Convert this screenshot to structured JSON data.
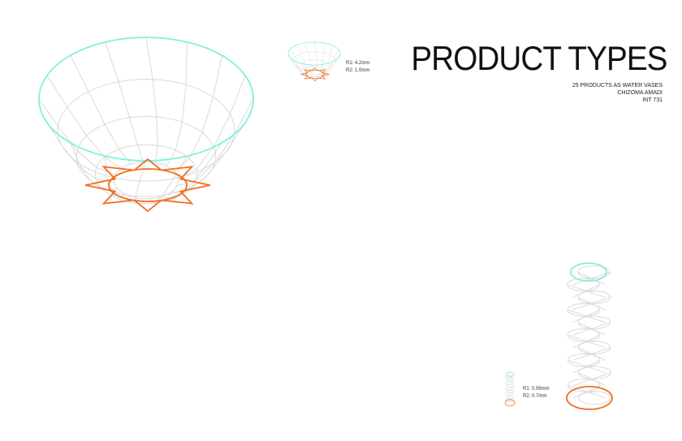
{
  "title": "PRODUCT TYPES",
  "subtitle_lines": [
    "25 PRODUCTS AS WATER VASES",
    "CHIZOMA AMADI",
    "INT 731"
  ],
  "bowl_labels": {
    "r1": "R1: 4.2mm",
    "r2": "R2: 1.0mm"
  },
  "tower_labels": {
    "r1": "R1: 0.56mm",
    "r2": "R2: 0.7mm"
  },
  "colors": {
    "top_ring": "#7ff0e0",
    "base_ring": "#f07020",
    "wireframe": "#dcdcdc"
  }
}
